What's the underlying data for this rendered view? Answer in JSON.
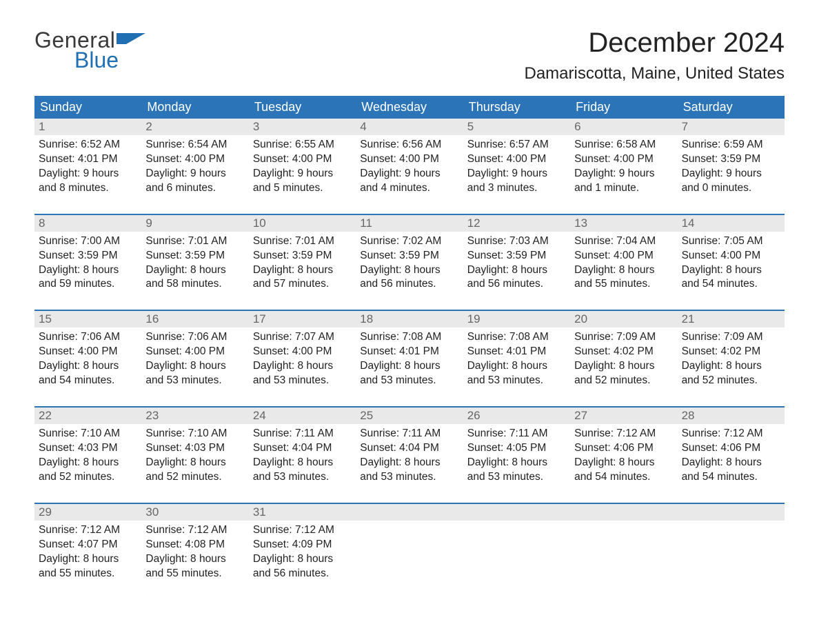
{
  "logo": {
    "text_general": "General",
    "text_blue": "Blue",
    "flag_color": "#1f6fb2"
  },
  "header": {
    "month_title": "December 2024",
    "location": "Damariscotta, Maine, United States",
    "title_fontsize": 40,
    "location_fontsize": 24
  },
  "calendar": {
    "header_bg": "#2b74b8",
    "header_fg": "#ffffff",
    "row_border_color": "#2b74b8",
    "daynum_bg": "#e9e9e9",
    "daynum_fg": "#666666",
    "body_text_color": "#222222",
    "day_labels": [
      "Sunday",
      "Monday",
      "Tuesday",
      "Wednesday",
      "Thursday",
      "Friday",
      "Saturday"
    ],
    "weeks": [
      [
        {
          "n": "1",
          "sunrise": "6:52 AM",
          "sunset": "4:01 PM",
          "daylight": "9 hours and 8 minutes."
        },
        {
          "n": "2",
          "sunrise": "6:54 AM",
          "sunset": "4:00 PM",
          "daylight": "9 hours and 6 minutes."
        },
        {
          "n": "3",
          "sunrise": "6:55 AM",
          "sunset": "4:00 PM",
          "daylight": "9 hours and 5 minutes."
        },
        {
          "n": "4",
          "sunrise": "6:56 AM",
          "sunset": "4:00 PM",
          "daylight": "9 hours and 4 minutes."
        },
        {
          "n": "5",
          "sunrise": "6:57 AM",
          "sunset": "4:00 PM",
          "daylight": "9 hours and 3 minutes."
        },
        {
          "n": "6",
          "sunrise": "6:58 AM",
          "sunset": "4:00 PM",
          "daylight": "9 hours and 1 minute."
        },
        {
          "n": "7",
          "sunrise": "6:59 AM",
          "sunset": "3:59 PM",
          "daylight": "9 hours and 0 minutes."
        }
      ],
      [
        {
          "n": "8",
          "sunrise": "7:00 AM",
          "sunset": "3:59 PM",
          "daylight": "8 hours and 59 minutes."
        },
        {
          "n": "9",
          "sunrise": "7:01 AM",
          "sunset": "3:59 PM",
          "daylight": "8 hours and 58 minutes."
        },
        {
          "n": "10",
          "sunrise": "7:01 AM",
          "sunset": "3:59 PM",
          "daylight": "8 hours and 57 minutes."
        },
        {
          "n": "11",
          "sunrise": "7:02 AM",
          "sunset": "3:59 PM",
          "daylight": "8 hours and 56 minutes."
        },
        {
          "n": "12",
          "sunrise": "7:03 AM",
          "sunset": "3:59 PM",
          "daylight": "8 hours and 56 minutes."
        },
        {
          "n": "13",
          "sunrise": "7:04 AM",
          "sunset": "4:00 PM",
          "daylight": "8 hours and 55 minutes."
        },
        {
          "n": "14",
          "sunrise": "7:05 AM",
          "sunset": "4:00 PM",
          "daylight": "8 hours and 54 minutes."
        }
      ],
      [
        {
          "n": "15",
          "sunrise": "7:06 AM",
          "sunset": "4:00 PM",
          "daylight": "8 hours and 54 minutes."
        },
        {
          "n": "16",
          "sunrise": "7:06 AM",
          "sunset": "4:00 PM",
          "daylight": "8 hours and 53 minutes."
        },
        {
          "n": "17",
          "sunrise": "7:07 AM",
          "sunset": "4:00 PM",
          "daylight": "8 hours and 53 minutes."
        },
        {
          "n": "18",
          "sunrise": "7:08 AM",
          "sunset": "4:01 PM",
          "daylight": "8 hours and 53 minutes."
        },
        {
          "n": "19",
          "sunrise": "7:08 AM",
          "sunset": "4:01 PM",
          "daylight": "8 hours and 53 minutes."
        },
        {
          "n": "20",
          "sunrise": "7:09 AM",
          "sunset": "4:02 PM",
          "daylight": "8 hours and 52 minutes."
        },
        {
          "n": "21",
          "sunrise": "7:09 AM",
          "sunset": "4:02 PM",
          "daylight": "8 hours and 52 minutes."
        }
      ],
      [
        {
          "n": "22",
          "sunrise": "7:10 AM",
          "sunset": "4:03 PM",
          "daylight": "8 hours and 52 minutes."
        },
        {
          "n": "23",
          "sunrise": "7:10 AM",
          "sunset": "4:03 PM",
          "daylight": "8 hours and 52 minutes."
        },
        {
          "n": "24",
          "sunrise": "7:11 AM",
          "sunset": "4:04 PM",
          "daylight": "8 hours and 53 minutes."
        },
        {
          "n": "25",
          "sunrise": "7:11 AM",
          "sunset": "4:04 PM",
          "daylight": "8 hours and 53 minutes."
        },
        {
          "n": "26",
          "sunrise": "7:11 AM",
          "sunset": "4:05 PM",
          "daylight": "8 hours and 53 minutes."
        },
        {
          "n": "27",
          "sunrise": "7:12 AM",
          "sunset": "4:06 PM",
          "daylight": "8 hours and 54 minutes."
        },
        {
          "n": "28",
          "sunrise": "7:12 AM",
          "sunset": "4:06 PM",
          "daylight": "8 hours and 54 minutes."
        }
      ],
      [
        {
          "n": "29",
          "sunrise": "7:12 AM",
          "sunset": "4:07 PM",
          "daylight": "8 hours and 55 minutes."
        },
        {
          "n": "30",
          "sunrise": "7:12 AM",
          "sunset": "4:08 PM",
          "daylight": "8 hours and 55 minutes."
        },
        {
          "n": "31",
          "sunrise": "7:12 AM",
          "sunset": "4:09 PM",
          "daylight": "8 hours and 56 minutes."
        },
        {
          "n": "",
          "sunrise": "",
          "sunset": "",
          "daylight": ""
        },
        {
          "n": "",
          "sunrise": "",
          "sunset": "",
          "daylight": ""
        },
        {
          "n": "",
          "sunrise": "",
          "sunset": "",
          "daylight": ""
        },
        {
          "n": "",
          "sunrise": "",
          "sunset": "",
          "daylight": ""
        }
      ]
    ],
    "labels": {
      "sunrise_prefix": "Sunrise: ",
      "sunset_prefix": "Sunset: ",
      "daylight_prefix": "Daylight: "
    }
  }
}
